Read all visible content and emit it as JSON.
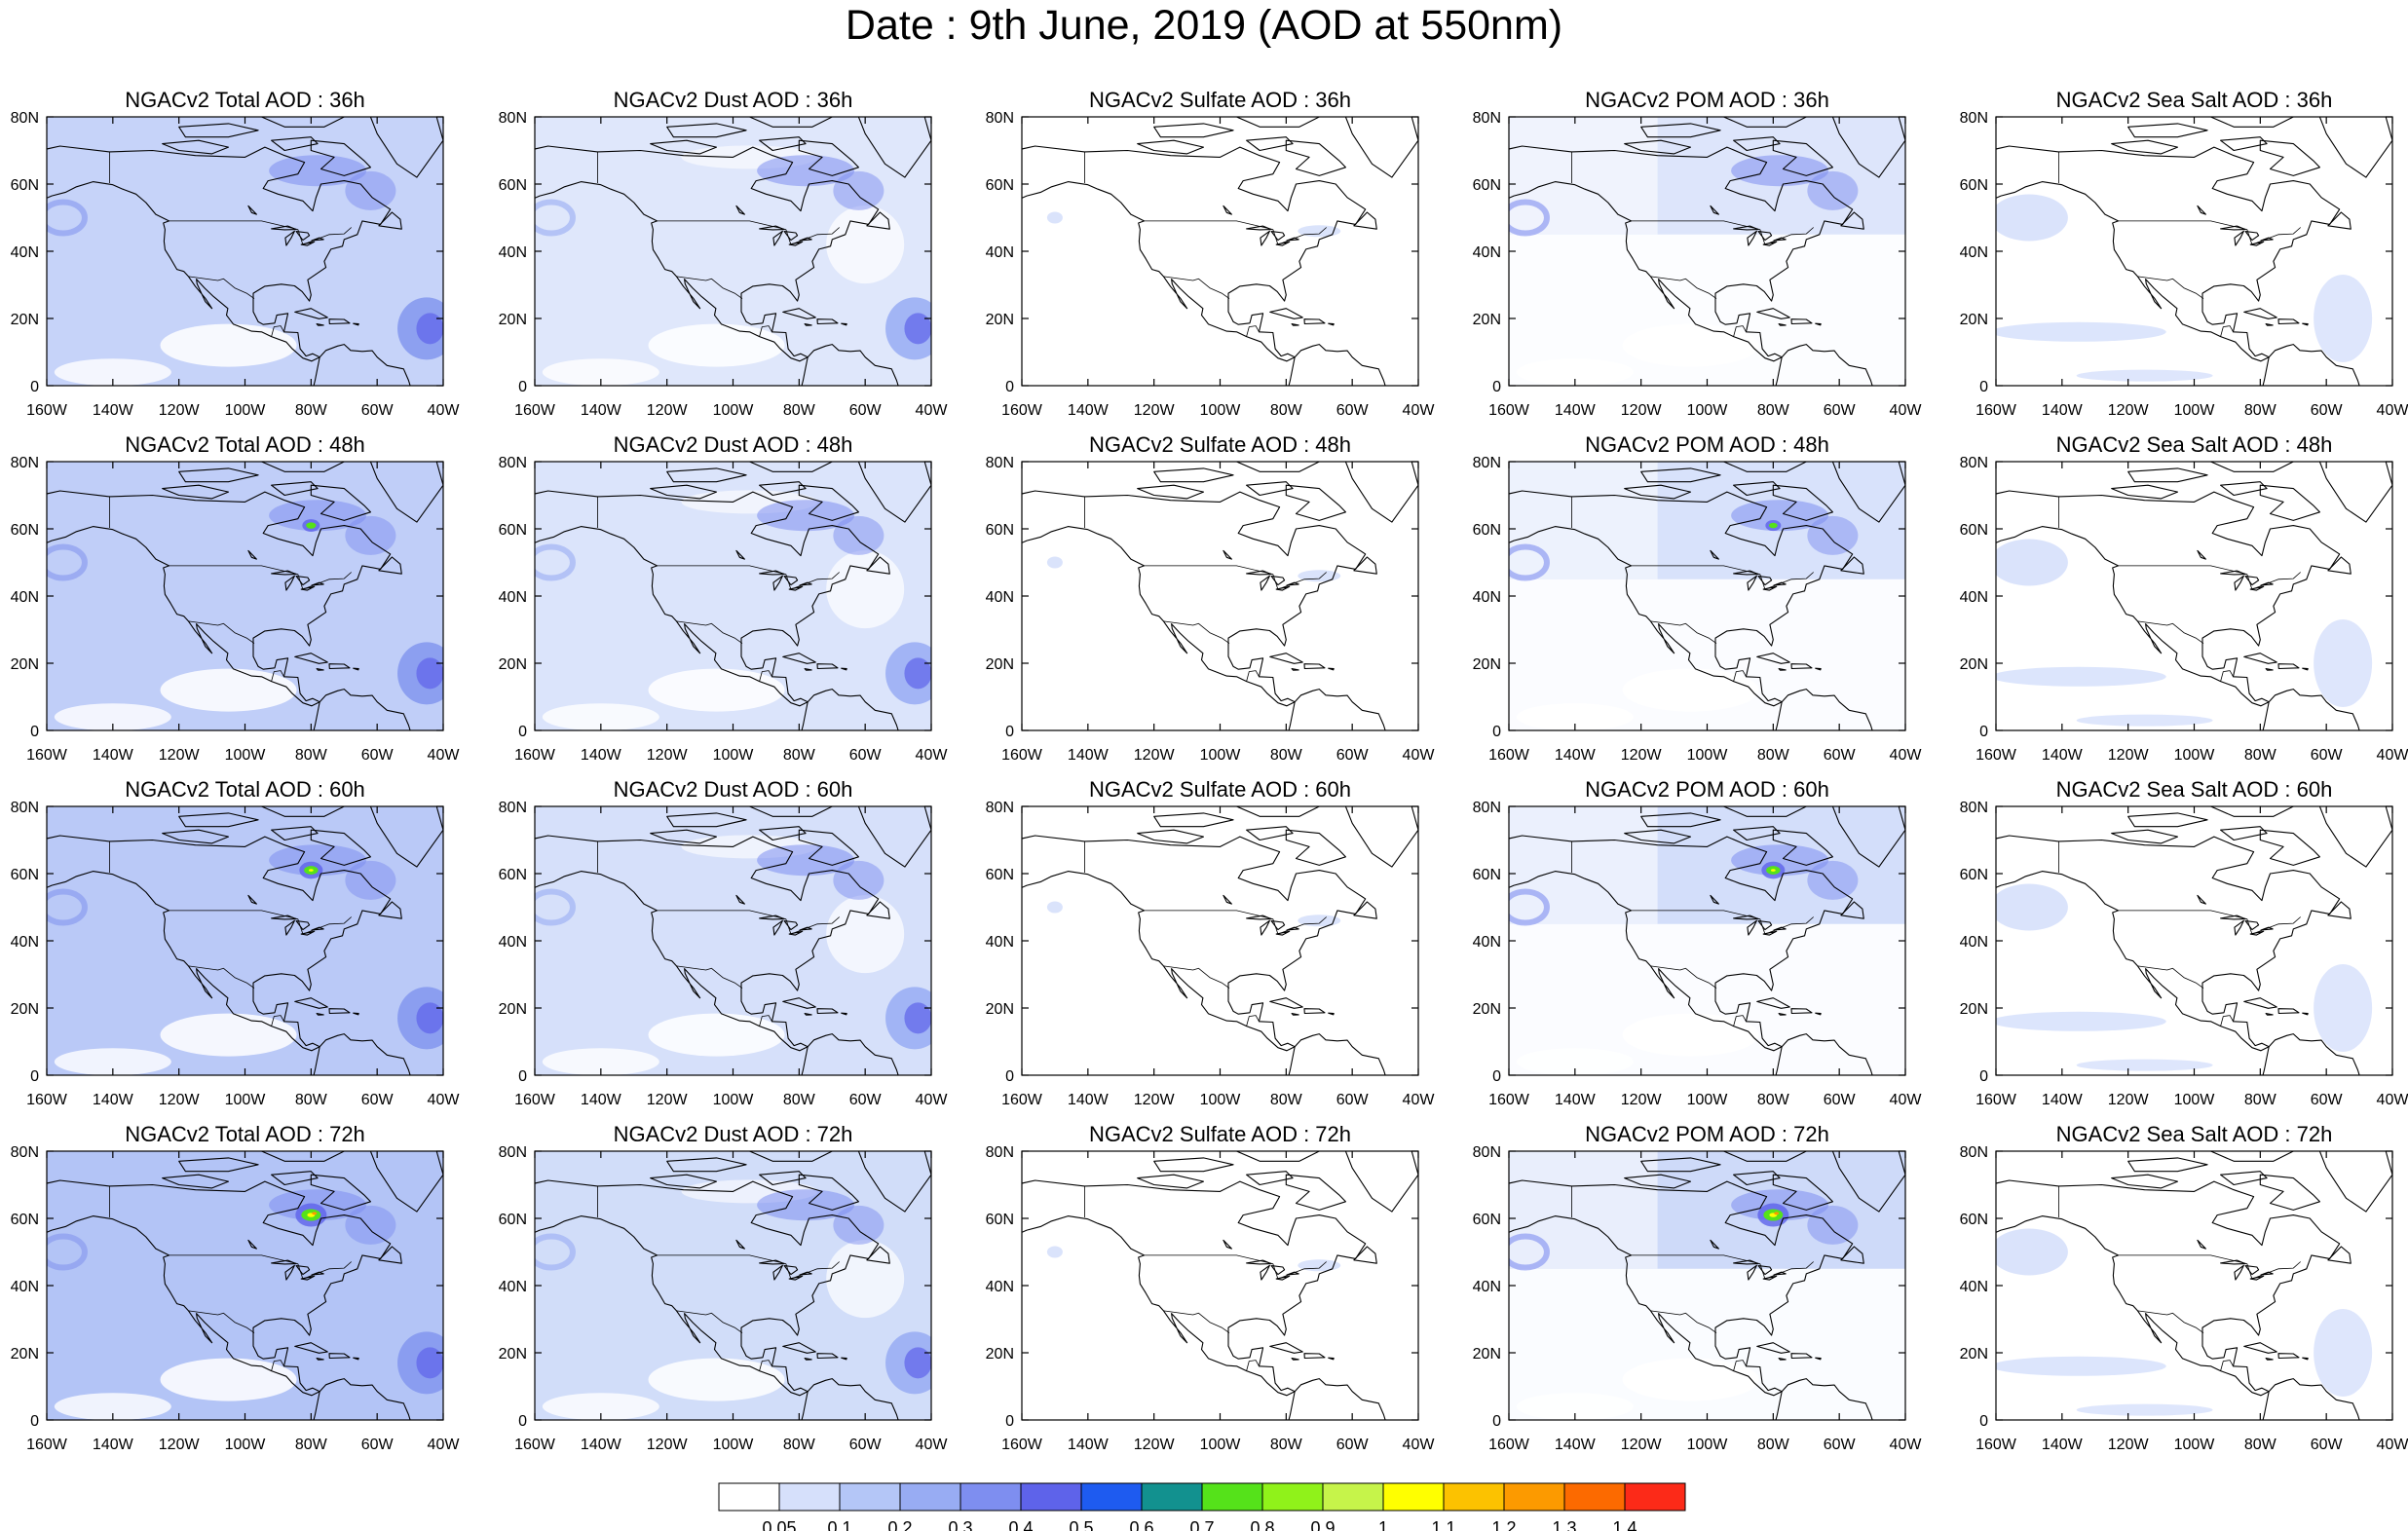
{
  "title": "Date : 9th June, 2019 (AOD at 550nm)",
  "map": {
    "x_ticks": [
      "160W",
      "140W",
      "120W",
      "100W",
      "80W",
      "60W",
      "40W"
    ],
    "y_ticks": [
      "80N",
      "60N",
      "40N",
      "20N",
      "0"
    ],
    "rows": [
      {
        "panels": [
          {
            "title": "NGACv2 Total AOD : 36h",
            "species": "total",
            "level": 0.45,
            "plume": 0
          },
          {
            "title": "NGACv2 Dust AOD : 36h",
            "species": "dust",
            "level": 0.35,
            "plume": 0
          },
          {
            "title": "NGACv2 Sulfate AOD : 36h",
            "species": "sulfate",
            "level": 0.1,
            "plume": 0
          },
          {
            "title": "NGACv2 POM AOD : 36h",
            "species": "pom",
            "level": 0.35,
            "plume": 0
          },
          {
            "title": "NGACv2 Sea Salt AOD : 36h",
            "species": "seasalt",
            "level": 0.25,
            "plume": 0
          }
        ]
      },
      {
        "panels": [
          {
            "title": "NGACv2 Total AOD : 48h",
            "species": "total",
            "level": 0.5,
            "plume": 0.3
          },
          {
            "title": "NGACv2 Dust AOD : 48h",
            "species": "dust",
            "level": 0.4,
            "plume": 0
          },
          {
            "title": "NGACv2 Sulfate AOD : 48h",
            "species": "sulfate",
            "level": 0.12,
            "plume": 0
          },
          {
            "title": "NGACv2 POM AOD : 48h",
            "species": "pom",
            "level": 0.4,
            "plume": 0.2
          },
          {
            "title": "NGACv2 Sea Salt AOD : 48h",
            "species": "seasalt",
            "level": 0.3,
            "plume": 0
          }
        ]
      },
      {
        "panels": [
          {
            "title": "NGACv2 Total AOD : 60h",
            "species": "total",
            "level": 0.55,
            "plume": 0.6
          },
          {
            "title": "NGACv2 Dust AOD : 60h",
            "species": "dust",
            "level": 0.45,
            "plume": 0
          },
          {
            "title": "NGACv2 Sulfate AOD : 60h",
            "species": "sulfate",
            "level": 0.15,
            "plume": 0
          },
          {
            "title": "NGACv2 POM AOD : 60h",
            "species": "pom",
            "level": 0.45,
            "plume": 0.6
          },
          {
            "title": "NGACv2 Sea Salt AOD : 60h",
            "species": "seasalt",
            "level": 0.3,
            "plume": 0
          }
        ]
      },
      {
        "panels": [
          {
            "title": "NGACv2 Total AOD : 72h",
            "species": "total",
            "level": 0.6,
            "plume": 1
          },
          {
            "title": "NGACv2 Dust AOD : 72h",
            "species": "dust",
            "level": 0.5,
            "plume": 0
          },
          {
            "title": "NGACv2 Sulfate AOD : 72h",
            "species": "sulfate",
            "level": 0.18,
            "plume": 0
          },
          {
            "title": "NGACv2 POM AOD : 72h",
            "species": "pom",
            "level": 0.5,
            "plume": 1
          },
          {
            "title": "NGACv2 Sea Salt  AOD : 72h",
            "species": "seasalt",
            "level": 0.35,
            "plume": 0
          }
        ]
      }
    ]
  },
  "colorbar": {
    "labels": [
      "0.05",
      "0.1",
      "0.2",
      "0.3",
      "0.4",
      "0.5",
      "0.6",
      "0.7",
      "0.8",
      "0.9",
      "1",
      "1.1",
      "1.2",
      "1.3",
      "1.4"
    ],
    "colors": [
      "#ffffff",
      "#d6e0fb",
      "#b4c6f7",
      "#98acf3",
      "#7e8ef0",
      "#5e63ea",
      "#1e5bf0",
      "#12918f",
      "#55e21a",
      "#90f21a",
      "#c6f44a",
      "#ffff00",
      "#fcc200",
      "#fc9a00",
      "#fc6a00",
      "#fc2a18"
    ]
  }
}
